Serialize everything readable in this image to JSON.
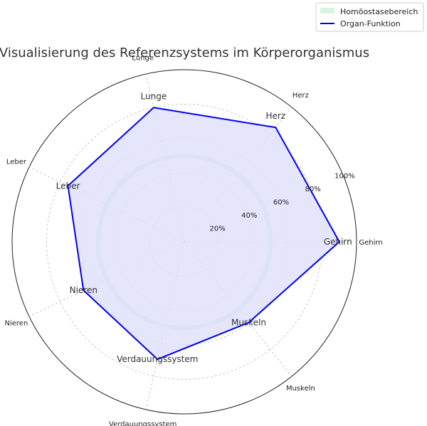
{
  "chart_data": {
    "type": "radar",
    "title": "Visualisierung des Referenzsystems im Körperorganismus",
    "categories": [
      "Gehirn",
      "Herz",
      "Lunge",
      "Leber",
      "Nieren",
      "Verdauungssystem",
      "Muskeln"
    ],
    "series": [
      {
        "name": "Organ-Funktion",
        "values": [
          90,
          85,
          80,
          75,
          65,
          70,
          60
        ],
        "color": "#0000ee",
        "fill": "#e0e0fb"
      }
    ],
    "band": {
      "name": "Homöostasebereich",
      "range": [
        49,
        51
      ],
      "color": "#c8ecda",
      "legend_color": "#d7f5dc"
    },
    "rlim": [
      0,
      100
    ],
    "r_ticks": [
      20,
      40,
      60,
      80,
      100
    ],
    "r_tick_labels": [
      "20%",
      "40%",
      "60%",
      "80%",
      "100%"
    ],
    "grid": true,
    "legend_position": "top-right"
  }
}
